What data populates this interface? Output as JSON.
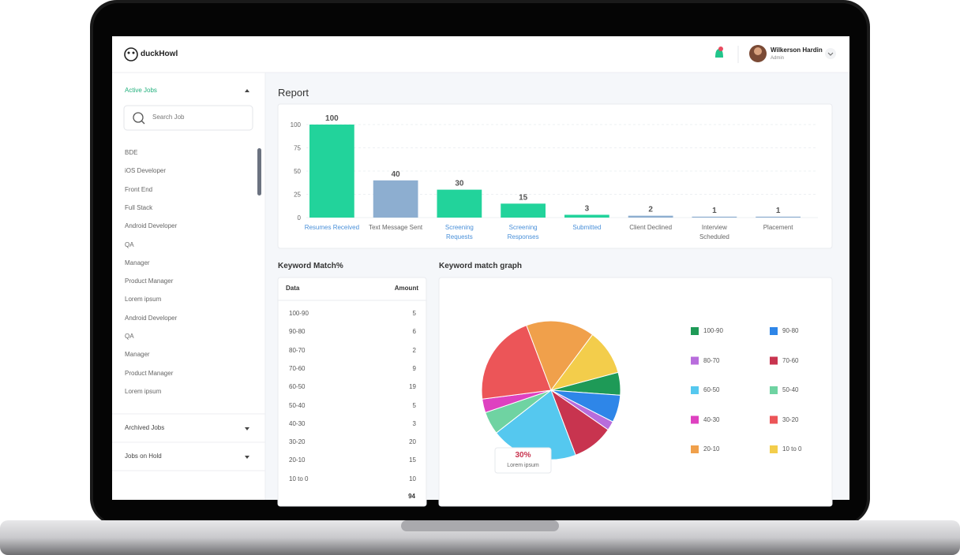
{
  "brand": "duckHowl",
  "user": {
    "name": "Wilkerson Hardin",
    "role": "Admin"
  },
  "sidebar": {
    "active_jobs": "Active Jobs",
    "search_placeholder": "Search Job",
    "jobs": [
      "BDE",
      "iOS Developer",
      "Front End",
      "Full Stack",
      "Android Developer",
      "QA",
      "Manager",
      "Product Manager",
      "Lorem ipsum",
      "Android Developer",
      "QA",
      "Manager",
      "Product Manager",
      "Lorem ipsum"
    ],
    "archived_jobs": "Archived Jobs",
    "jobs_on_hold": "Jobs on Hold"
  },
  "report_title": "Report",
  "keyword_table": {
    "title": "Keyword Match%",
    "columns": [
      "Data",
      "Amount"
    ],
    "rows": [
      [
        "100-90",
        5
      ],
      [
        "90-80",
        6
      ],
      [
        "80-70",
        2
      ],
      [
        "70-60",
        9
      ],
      [
        "60-50",
        19
      ],
      [
        "50-40",
        5
      ],
      [
        "40-30",
        3
      ],
      [
        "30-20",
        20
      ],
      [
        "20-10",
        15
      ],
      [
        "10 to 0",
        10
      ]
    ],
    "total": 94
  },
  "chart_data": [
    {
      "type": "bar",
      "categories": [
        "Resumes Received",
        "Text Message Sent",
        "Screening Requests",
        "Screening Responses",
        "Submitted",
        "Client Declined",
        "Interview Scheduled",
        "Placement"
      ],
      "values": [
        100,
        40,
        30,
        15,
        3,
        2,
        1,
        1
      ],
      "colors": [
        "#22d39b",
        "#8daed0",
        "#22d39b",
        "#22d39b",
        "#22d39b",
        "#8daed0",
        "#8daed0",
        "#8daed0"
      ],
      "label_colors": [
        "#4a90d9",
        "#666666",
        "#4a90d9",
        "#4a90d9",
        "#4a90d9",
        "#666666",
        "#666666",
        "#666666"
      ],
      "ylim": [
        0,
        100
      ],
      "yticks": [
        0,
        25,
        50,
        75,
        100
      ],
      "grid": true
    },
    {
      "type": "pie",
      "title": "Keyword match graph",
      "categories": [
        "100-90",
        "90-80",
        "80-70",
        "70-60",
        "60-50",
        "50-40",
        "40-30",
        "30-20",
        "20-10",
        "10 to 0"
      ],
      "values": [
        5,
        6,
        2,
        9,
        19,
        5,
        3,
        20,
        15,
        10
      ],
      "colors": [
        "#1e9a57",
        "#2e86e8",
        "#b86ddc",
        "#c8344f",
        "#55c8ef",
        "#6fd3a2",
        "#de41c0",
        "#ec5558",
        "#f0a04b",
        "#f3cd4b"
      ],
      "tooltip": {
        "label": "30%",
        "text": "Lorem ipsum"
      }
    }
  ]
}
